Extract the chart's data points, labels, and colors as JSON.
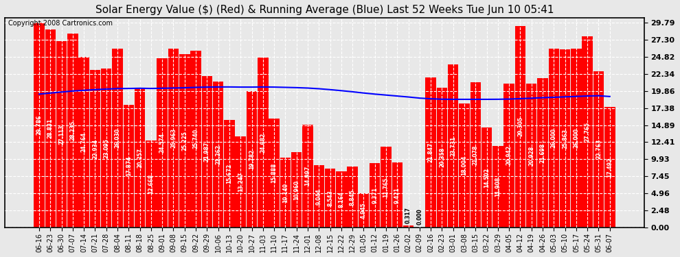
{
  "title": "Solar Energy Value ($) (Red) & Running Average (Blue) Last 52 Weeks Tue Jun 10 05:41",
  "copyright_text": "Copyright 2008 Cartronics.com",
  "bar_color": "#ff0000",
  "line_color": "#0000ff",
  "background_color": "#e8e8e8",
  "plot_bg_color": "#e8e8e8",
  "grid_color": "#ffffff",
  "title_fontsize": 11,
  "categories": [
    "06-16",
    "06-23",
    "06-30",
    "07-07",
    "07-14",
    "07-21",
    "07-28",
    "08-04",
    "08-11",
    "08-18",
    "08-25",
    "09-01",
    "09-08",
    "09-15",
    "09-22",
    "09-29",
    "10-06",
    "10-13",
    "10-20",
    "10-27",
    "11-03",
    "11-10",
    "11-17",
    "11-24",
    "12-01",
    "12-08",
    "12-15",
    "12-22",
    "12-29",
    "01-05",
    "01-12",
    "01-19",
    "01-26",
    "02-02",
    "02-09",
    "02-16",
    "02-23",
    "03-01",
    "03-08",
    "03-15",
    "03-22",
    "03-29",
    "04-05",
    "04-12",
    "04-19",
    "04-26",
    "05-03",
    "05-10",
    "05-17",
    "05-24",
    "05-31",
    "06-07"
  ],
  "values": [
    29.786,
    28.831,
    27.113,
    28.235,
    24.764,
    22.934,
    23.095,
    26.03,
    17.874,
    20.257,
    12.668,
    24.574,
    25.963,
    25.225,
    25.74,
    21.987,
    21.262,
    15.672,
    13.247,
    19.782,
    24.682,
    15.888,
    10.14,
    10.96,
    14.997,
    9.044,
    8.543,
    8.164,
    8.845,
    4.945,
    9.371,
    11.765,
    9.421,
    0.317,
    0.0,
    21.847,
    20.358,
    23.731,
    18.004,
    21.078,
    14.502,
    11.908,
    20.942,
    29.305,
    20.928,
    21.698,
    26.0,
    25.863,
    26.0,
    27.765,
    22.763,
    17.492
  ],
  "running_avg": [
    19.4,
    19.55,
    19.7,
    19.85,
    19.95,
    20.05,
    20.13,
    20.2,
    20.22,
    20.25,
    20.22,
    20.25,
    20.28,
    20.32,
    20.38,
    20.42,
    20.44,
    20.44,
    20.42,
    20.42,
    20.44,
    20.42,
    20.38,
    20.34,
    20.28,
    20.18,
    20.05,
    19.9,
    19.74,
    19.56,
    19.4,
    19.26,
    19.12,
    18.98,
    18.82,
    18.72,
    18.66,
    18.64,
    18.64,
    18.64,
    18.64,
    18.65,
    18.68,
    18.74,
    18.8,
    18.88,
    18.94,
    19.0,
    19.06,
    19.12,
    19.16,
    19.05
  ],
  "yticks": [
    0.0,
    2.48,
    4.96,
    7.45,
    9.93,
    12.41,
    14.89,
    17.38,
    19.86,
    22.34,
    24.82,
    27.3,
    29.79
  ],
  "ylim": [
    0.0,
    30.5
  ]
}
